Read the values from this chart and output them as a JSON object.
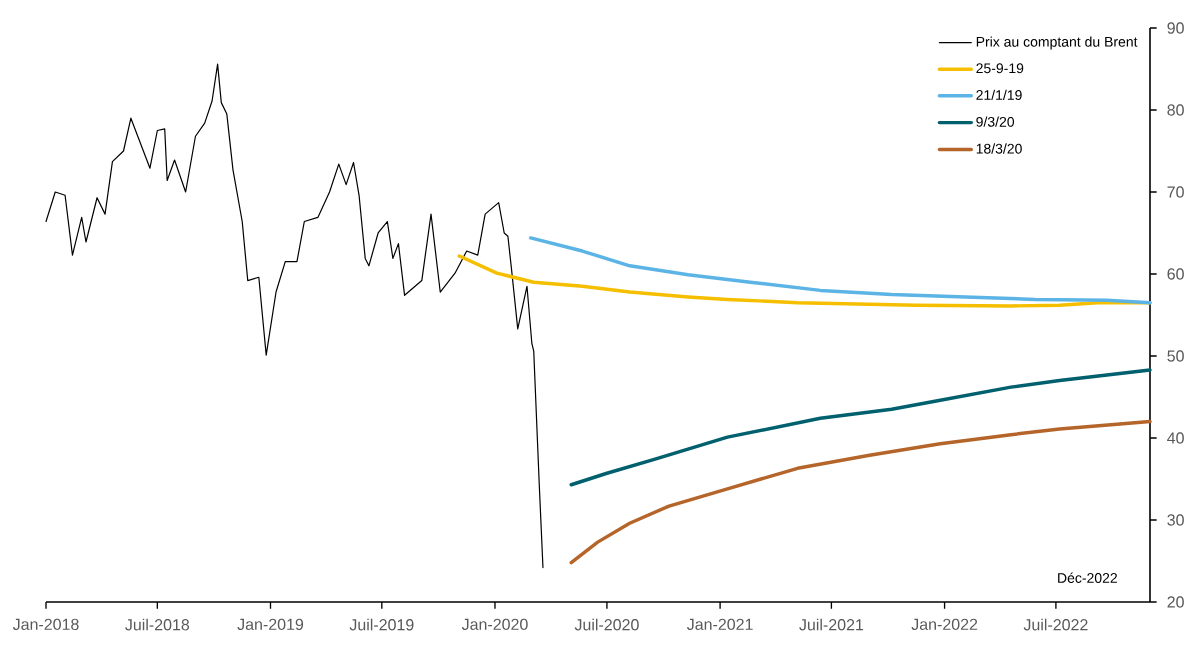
{
  "chart_data": {
    "type": "line",
    "legend": "top right",
    "annotations": [
      "Déc-2022"
    ],
    "xlim": [
      "2018-01-01",
      "2022-12-01"
    ],
    "ylim": [
      20,
      90
    ],
    "yticks": [
      20,
      30,
      40,
      50,
      60,
      70,
      80,
      90
    ],
    "xticks": [
      {
        "value": "2018-01",
        "label": "Jan-2018"
      },
      {
        "value": "2018-07",
        "label": "Juil-2018"
      },
      {
        "value": "2019-01",
        "label": "Jan-2019"
      },
      {
        "value": "2019-07",
        "label": "Juil-2019"
      },
      {
        "value": "2020-01",
        "label": "Jan-2020"
      },
      {
        "value": "2020-07",
        "label": "Juil-2020"
      },
      {
        "value": "2021-01",
        "label": "Jan-2021"
      },
      {
        "value": "2021-07",
        "label": "Juil-2021"
      },
      {
        "value": "2022-01",
        "label": "Jan-2022"
      },
      {
        "value": "2022-07",
        "label": "Juil-2022"
      }
    ],
    "series": [
      {
        "name": "Prix au comptant du Brent",
        "color": "#000000",
        "x": [
          "2018-01-01",
          "2018-01-16",
          "2018-02-01",
          "2018-02-13",
          "2018-02-28",
          "2018-03-07",
          "2018-03-25",
          "2018-04-07",
          "2018-04-19",
          "2018-05-07",
          "2018-05-19",
          "2018-06-19",
          "2018-07-01",
          "2018-07-13",
          "2018-07-17",
          "2018-07-29",
          "2018-08-16",
          "2018-09-01",
          "2018-09-16",
          "2018-09-28",
          "2018-10-07",
          "2018-10-13",
          "2018-10-22",
          "2018-11-01",
          "2018-11-16",
          "2018-11-25",
          "2018-12-13",
          "2018-12-25",
          "2019-01-10",
          "2019-01-25",
          "2019-02-13",
          "2019-02-25",
          "2019-03-19",
          "2019-04-07",
          "2019-04-22",
          "2019-05-04",
          "2019-05-16",
          "2019-05-25",
          "2019-06-04",
          "2019-06-10",
          "2019-06-25",
          "2019-07-10",
          "2019-07-19",
          "2019-07-28",
          "2019-08-07",
          "2019-09-04",
          "2019-09-19",
          "2019-10-04",
          "2019-10-28",
          "2019-11-16",
          "2019-12-04",
          "2019-12-16",
          "2020-01-07",
          "2020-01-16",
          "2020-01-22",
          "2020-01-28",
          "2020-02-07",
          "2020-02-22",
          "2020-03-01",
          "2020-03-04",
          "2020-03-13",
          "2020-03-19"
        ],
        "values": [
          66.4,
          70.0,
          69.6,
          62.3,
          66.9,
          63.9,
          69.3,
          67.3,
          73.7,
          75.0,
          79.0,
          72.9,
          77.5,
          77.7,
          71.4,
          73.9,
          70.0,
          76.8,
          78.4,
          81.1,
          85.6,
          80.9,
          79.5,
          72.7,
          66.4,
          59.2,
          59.6,
          50.1,
          57.8,
          61.5,
          61.5,
          66.4,
          66.9,
          70.0,
          73.4,
          70.9,
          73.6,
          69.6,
          61.9,
          61.0,
          65.0,
          66.4,
          61.9,
          63.7,
          57.4,
          59.2,
          67.3,
          57.8,
          60.1,
          62.8,
          62.3,
          67.3,
          68.7,
          65.0,
          64.6,
          60.5,
          53.3,
          58.5,
          51.5,
          50.6,
          34.3,
          24.2
        ]
      },
      {
        "name": "25-9-19",
        "color": "#f5bf00",
        "x": [
          "2019-11-04",
          "2020-01-04",
          "2020-03-04",
          "2020-05-22",
          "2020-08-07",
          "2020-11-10",
          "2021-01-13",
          "2021-05-07",
          "2021-11-16",
          "2022-04-19",
          "2022-07-07",
          "2022-09-07",
          "2022-12-01"
        ],
        "values": [
          62.2,
          60.1,
          59.0,
          58.5,
          57.8,
          57.2,
          56.9,
          56.5,
          56.2,
          56.1,
          56.2,
          56.5,
          56.5
        ]
      },
      {
        "name": "21/1/19",
        "color": "#5bb4e5",
        "x": [
          "2020-02-28",
          "2020-05-22",
          "2020-08-07",
          "2020-11-10",
          "2021-02-19",
          "2021-06-13",
          "2021-10-07",
          "2022-02-04",
          "2022-05-28",
          "2022-09-22",
          "2022-12-01"
        ],
        "values": [
          64.4,
          62.8,
          61.0,
          59.9,
          59.0,
          58.0,
          57.5,
          57.2,
          56.9,
          56.8,
          56.5
        ]
      },
      {
        "name": "9/3/20",
        "color": "#00606e",
        "x": [
          "2020-05-04",
          "2020-07-01",
          "2020-09-16",
          "2021-01-13",
          "2021-06-13",
          "2021-10-07",
          "2021-12-25",
          "2022-04-19",
          "2022-07-07",
          "2022-12-01"
        ],
        "values": [
          34.3,
          35.7,
          37.4,
          40.1,
          42.4,
          43.5,
          44.6,
          46.2,
          47.0,
          48.3
        ]
      },
      {
        "name": "18/3/20",
        "color": "#b5652a",
        "x": [
          "2020-05-04",
          "2020-06-16",
          "2020-08-07",
          "2020-10-10",
          "2021-01-13",
          "2021-05-07",
          "2021-09-01",
          "2021-12-25",
          "2022-04-19",
          "2022-07-07",
          "2022-12-01"
        ],
        "values": [
          24.8,
          27.3,
          29.6,
          31.7,
          33.8,
          36.3,
          37.9,
          39.3,
          40.4,
          41.1,
          42.0
        ]
      }
    ]
  }
}
